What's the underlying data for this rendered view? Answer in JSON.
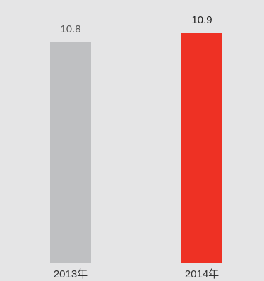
{
  "chart_data": {
    "type": "bar",
    "categories": [
      "2013年",
      "2014年"
    ],
    "values": [
      10.8,
      10.9
    ],
    "value_labels": [
      "10.8",
      "10.9"
    ],
    "colors": [
      "#bfc0c2",
      "#ee3124"
    ],
    "value_label_colors": [
      "#555555",
      "#222222"
    ],
    "axis_color": "#555555",
    "title": "",
    "xlabel": "",
    "ylabel": "",
    "grid": false,
    "legend": "none"
  }
}
